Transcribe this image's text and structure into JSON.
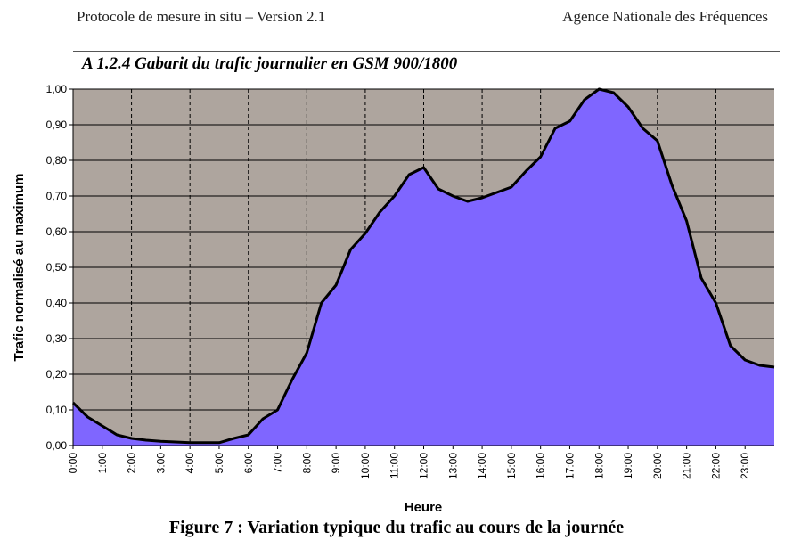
{
  "header": {
    "left": "Protocole de mesure in situ – Version 2.1",
    "right": "Agence Nationale des Fréquences"
  },
  "section_title": "A 1.2.4 Gabarit du trafic journalier en GSM 900/1800",
  "figure_caption": "Figure 7 : Variation typique du trafic au cours de la journée",
  "chart_data": {
    "type": "area",
    "xlabel": "Heure",
    "ylabel": "Trafic normalisé au maximum",
    "ylim": [
      0,
      1
    ],
    "xlim": [
      0,
      24
    ],
    "grid": {
      "horizontal": true,
      "vertical_dashed": true
    },
    "legend": "none",
    "colors": {
      "fill": "#7f66ff",
      "line": "#000000",
      "plot_bg": "#aea59e"
    },
    "y_ticks": [
      "0,00",
      "0,10",
      "0,20",
      "0,30",
      "0,40",
      "0,50",
      "0,60",
      "0,70",
      "0,80",
      "0,90",
      "1,00"
    ],
    "x_ticks": [
      "0:00",
      "1:00",
      "2:00",
      "3:00",
      "4:00",
      "5:00",
      "6:00",
      "7:00",
      "8:00",
      "9:00",
      "10:00",
      "11:00",
      "12:00",
      "13:00",
      "14:00",
      "15:00",
      "16:00",
      "17:00",
      "18:00",
      "19:00",
      "20:00",
      "21:00",
      "22:00",
      "23:00"
    ],
    "x": [
      0,
      0.5,
      1,
      1.5,
      2,
      2.5,
      3,
      3.5,
      4,
      4.5,
      5,
      5.5,
      6,
      6.5,
      7,
      7.5,
      8,
      8.5,
      9,
      9.5,
      10,
      10.5,
      11,
      11.5,
      12,
      12.5,
      13,
      13.5,
      14,
      14.5,
      15,
      15.5,
      16,
      16.5,
      17,
      17.5,
      18,
      18.5,
      19,
      19.5,
      20,
      20.5,
      21,
      21.5,
      22,
      22.5,
      23,
      23.5,
      24
    ],
    "values": [
      0.12,
      0.08,
      0.055,
      0.03,
      0.02,
      0.015,
      0.012,
      0.01,
      0.008,
      0.008,
      0.008,
      0.02,
      0.03,
      0.075,
      0.1,
      0.185,
      0.26,
      0.4,
      0.45,
      0.55,
      0.595,
      0.655,
      0.7,
      0.76,
      0.78,
      0.72,
      0.7,
      0.685,
      0.695,
      0.71,
      0.725,
      0.77,
      0.81,
      0.89,
      0.91,
      0.97,
      1.0,
      0.99,
      0.95,
      0.89,
      0.855,
      0.73,
      0.63,
      0.47,
      0.4,
      0.28,
      0.24,
      0.225,
      0.22
    ]
  }
}
